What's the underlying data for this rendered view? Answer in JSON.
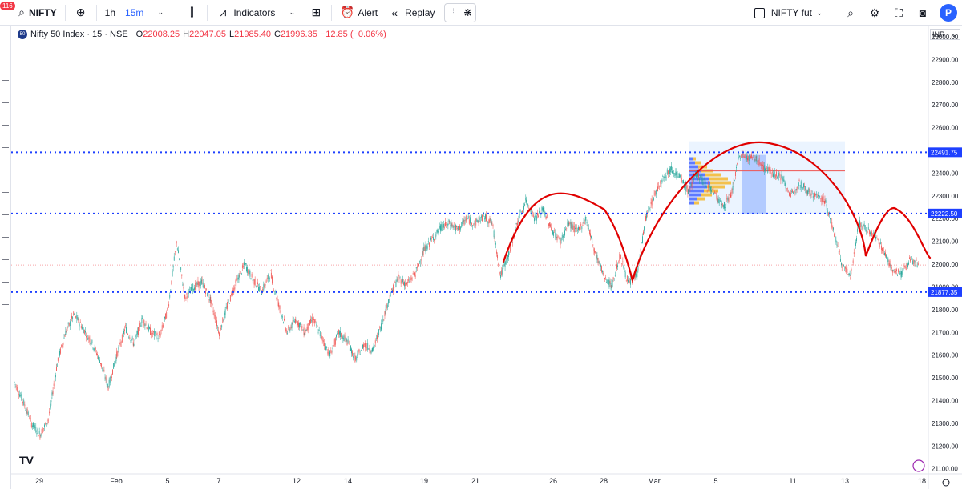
{
  "toolbar": {
    "notification_count": "116",
    "symbol": "NIFTY",
    "intervals": [
      "1h",
      "15m"
    ],
    "indicators_label": "Indicators",
    "alert_label": "Alert",
    "replay_label": "Replay",
    "layout_name": "NIFTY fut",
    "avatar_letter": "P"
  },
  "legend": {
    "title": "Nifty 50 Index · 15 · NSE",
    "logo_text": "50",
    "open_label": "O",
    "open": "22008.25",
    "high_label": "H",
    "high": "22047.05",
    "low_label": "L",
    "low": "21985.40",
    "close_label": "C",
    "close": "21996.35",
    "change": "−12.85 (−0.06%)"
  },
  "currency": "INR",
  "colors": {
    "up": "#26a69a",
    "down": "#ef5350",
    "levels": "#1e40ff",
    "pattern": "#e00000",
    "accent": "#2962ff"
  },
  "chart_data": {
    "type": "candlestick",
    "y_axis_ticks": [
      23000,
      22900,
      22800,
      22700,
      22600,
      22500,
      22400,
      22300,
      22200,
      22100,
      22000,
      21900,
      21800,
      21700,
      21600,
      21500,
      21400,
      21300,
      21200,
      21100
    ],
    "y_axis_tick_labels": [
      "23000.00",
      "22900.00",
      "22800.00",
      "22700.00",
      "22600.00",
      "22500.00",
      "22400.00",
      "22300.00",
      "22200.00",
      "22100.00",
      "22000.00",
      "21900.00",
      "21800.00",
      "21700.00",
      "21600.00",
      "21500.00",
      "21400.00",
      "21300.00",
      "21200.00",
      "21100.00"
    ],
    "ylim": [
      21085,
      23035
    ],
    "x_axis_labels": [
      "29",
      "Feb",
      "5",
      "7",
      "12",
      "14",
      "19",
      "21",
      "26",
      "28",
      "Mar",
      "5",
      "11",
      "13",
      "18"
    ],
    "horizontal_levels": [
      {
        "value": 22491.75,
        "label": "22491.75"
      },
      {
        "value": 22222.5,
        "label": "22222.50"
      },
      {
        "value": 21877.35,
        "label": "21877.35"
      }
    ],
    "last_price": 21996.35,
    "price_path": [
      [
        0,
        21480
      ],
      [
        1,
        21400
      ],
      [
        2,
        21300
      ],
      [
        3,
        21250
      ],
      [
        4,
        21320
      ],
      [
        5,
        21560
      ],
      [
        6,
        21700
      ],
      [
        7,
        21780
      ],
      [
        8,
        21720
      ],
      [
        9,
        21660
      ],
      [
        10,
        21580
      ],
      [
        11,
        21460
      ],
      [
        12,
        21600
      ],
      [
        13,
        21720
      ],
      [
        14,
        21650
      ],
      [
        15,
        21760
      ],
      [
        16,
        21700
      ],
      [
        17,
        21680
      ],
      [
        18,
        21800
      ],
      [
        19,
        22100
      ],
      [
        20,
        21850
      ],
      [
        21,
        21900
      ],
      [
        22,
        21920
      ],
      [
        23,
        21840
      ],
      [
        24,
        21700
      ],
      [
        25,
        21820
      ],
      [
        26,
        21920
      ],
      [
        27,
        22000
      ],
      [
        28,
        21930
      ],
      [
        29,
        21880
      ],
      [
        30,
        21960
      ],
      [
        31,
        21820
      ],
      [
        32,
        21700
      ],
      [
        33,
        21760
      ],
      [
        34,
        21700
      ],
      [
        35,
        21760
      ],
      [
        36,
        21680
      ],
      [
        37,
        21600
      ],
      [
        38,
        21700
      ],
      [
        39,
        21660
      ],
      [
        40,
        21580
      ],
      [
        41,
        21650
      ],
      [
        42,
        21620
      ],
      [
        43,
        21730
      ],
      [
        44,
        21860
      ],
      [
        45,
        21940
      ],
      [
        46,
        21910
      ],
      [
        47,
        21960
      ],
      [
        48,
        22060
      ],
      [
        49,
        22110
      ],
      [
        50,
        22160
      ],
      [
        51,
        22180
      ],
      [
        52,
        22150
      ],
      [
        53,
        22200
      ],
      [
        54,
        22180
      ],
      [
        55,
        22210
      ],
      [
        56,
        22180
      ],
      [
        57,
        21950
      ],
      [
        58,
        22050
      ],
      [
        59,
        22190
      ],
      [
        60,
        22280
      ],
      [
        61,
        22200
      ],
      [
        62,
        22240
      ],
      [
        63,
        22150
      ],
      [
        64,
        22100
      ],
      [
        65,
        22180
      ],
      [
        66,
        22140
      ],
      [
        67,
        22200
      ],
      [
        68,
        22060
      ],
      [
        69,
        21960
      ],
      [
        70,
        21900
      ],
      [
        71,
        22040
      ],
      [
        72,
        21910
      ],
      [
        73,
        21960
      ],
      [
        74,
        22200
      ],
      [
        75,
        22300
      ],
      [
        76,
        22380
      ],
      [
        77,
        22420
      ],
      [
        78,
        22380
      ],
      [
        79,
        22320
      ],
      [
        80,
        22400
      ],
      [
        81,
        22350
      ],
      [
        82,
        22320
      ],
      [
        83,
        22250
      ],
      [
        84,
        22300
      ],
      [
        85,
        22480
      ],
      [
        86,
        22470
      ],
      [
        87,
        22460
      ],
      [
        88,
        22420
      ],
      [
        89,
        22400
      ],
      [
        90,
        22380
      ],
      [
        91,
        22300
      ],
      [
        92,
        22360
      ],
      [
        93,
        22320
      ],
      [
        94,
        22300
      ],
      [
        95,
        22280
      ],
      [
        96,
        22150
      ],
      [
        97,
        22000
      ],
      [
        98,
        21950
      ],
      [
        99,
        22180
      ],
      [
        100,
        22150
      ],
      [
        101,
        22120
      ],
      [
        102,
        22050
      ],
      [
        103,
        21970
      ],
      [
        104,
        21960
      ],
      [
        105,
        22020
      ],
      [
        106,
        21996
      ]
    ]
  }
}
